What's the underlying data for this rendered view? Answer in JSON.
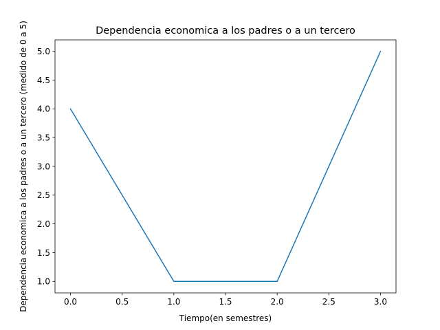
{
  "chart_data": {
    "type": "line",
    "title": "Dependencia economica a los padres o a un tercero",
    "xlabel": "Tiempo(en semestres)",
    "ylabel": "Dependencia economica a los padres o a un tercero (medido de 0 a 5)",
    "x": [
      0.0,
      1.0,
      2.0,
      3.0
    ],
    "series": [
      {
        "values": [
          4.0,
          1.0,
          1.0,
          5.0
        ]
      }
    ],
    "xlim": [
      -0.15,
      3.15
    ],
    "ylim": [
      0.8,
      5.2
    ],
    "xticks": [
      0.0,
      0.5,
      1.0,
      1.5,
      2.0,
      2.5,
      3.0
    ],
    "xtick_labels": [
      "0.0",
      "0.5",
      "1.0",
      "1.5",
      "2.0",
      "2.5",
      "3.0"
    ],
    "yticks": [
      1.0,
      1.5,
      2.0,
      2.5,
      3.0,
      3.5,
      4.0,
      4.5,
      5.0
    ],
    "ytick_labels": [
      "1.0",
      "1.5",
      "2.0",
      "2.5",
      "3.0",
      "3.5",
      "4.0",
      "4.5",
      "5.0"
    ],
    "grid": false,
    "colors": {
      "line": "#1f77b4",
      "axes": "#000000"
    }
  }
}
